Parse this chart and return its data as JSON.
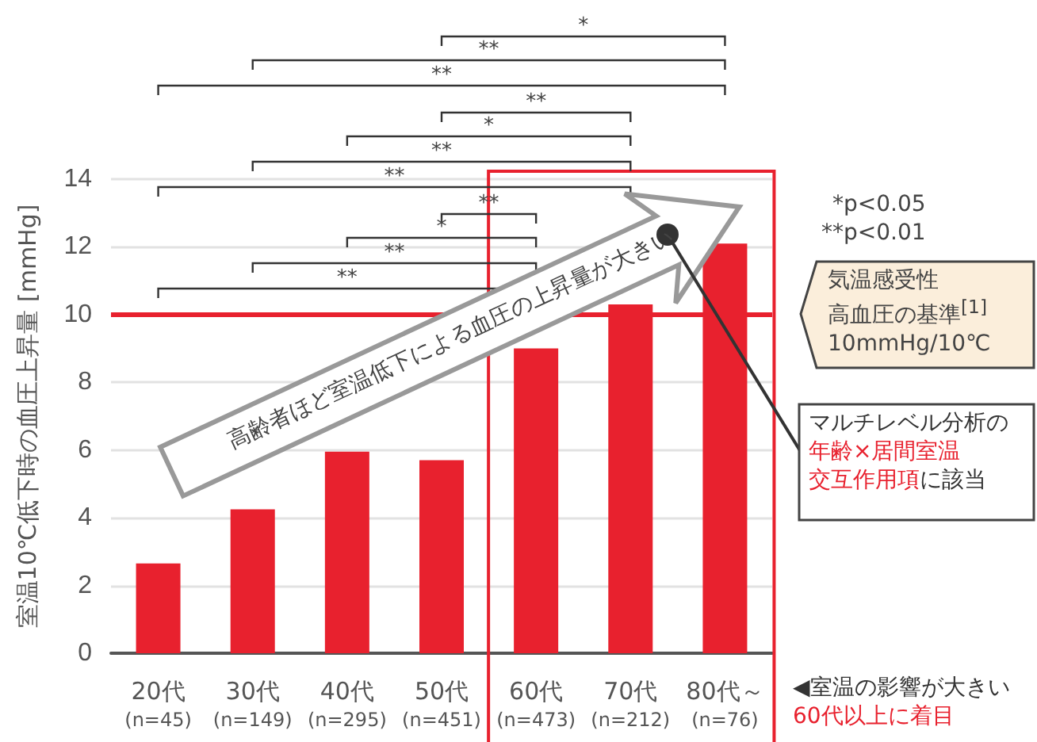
{
  "chart_data": {
    "type": "bar",
    "ylabel": "室温10℃低下時の血圧上昇量 [mmHg]",
    "categories": [
      "20代\n(n=45)",
      "30代\n(n=149)",
      "40代\n(n=295)",
      "50代\n(n=451)",
      "60代\n(n=473)",
      "70代\n(n=212)",
      "80代～\n(n=76)"
    ],
    "values": [
      2.65,
      4.25,
      5.95,
      5.7,
      9.0,
      10.3,
      12.1
    ],
    "color": "#e8212e",
    "ylim": [
      0,
      14
    ],
    "yticks": [
      0,
      2,
      4,
      6,
      8,
      10,
      12,
      14
    ],
    "grid": "y",
    "ref_lines": [
      {
        "axis": "y",
        "value": 10,
        "label": "気温感受性高血圧の基準$^{[1]}$\n10mmHg/10℃",
        "color": "#e8212e"
      }
    ],
    "annotations": [
      "**",
      "**",
      "*",
      "**",
      "**",
      "**",
      "*",
      "**",
      "**",
      "**",
      "*",
      "*p<0.05\n**p<0.01",
      "高齢者ほど室温低下による血圧の上昇量が大きい",
      "マルチレベル分析の年齢×居間室温交互作用項に該当",
      "◀室温の影響が大きい\n60代以上に着目"
    ]
  }
}
